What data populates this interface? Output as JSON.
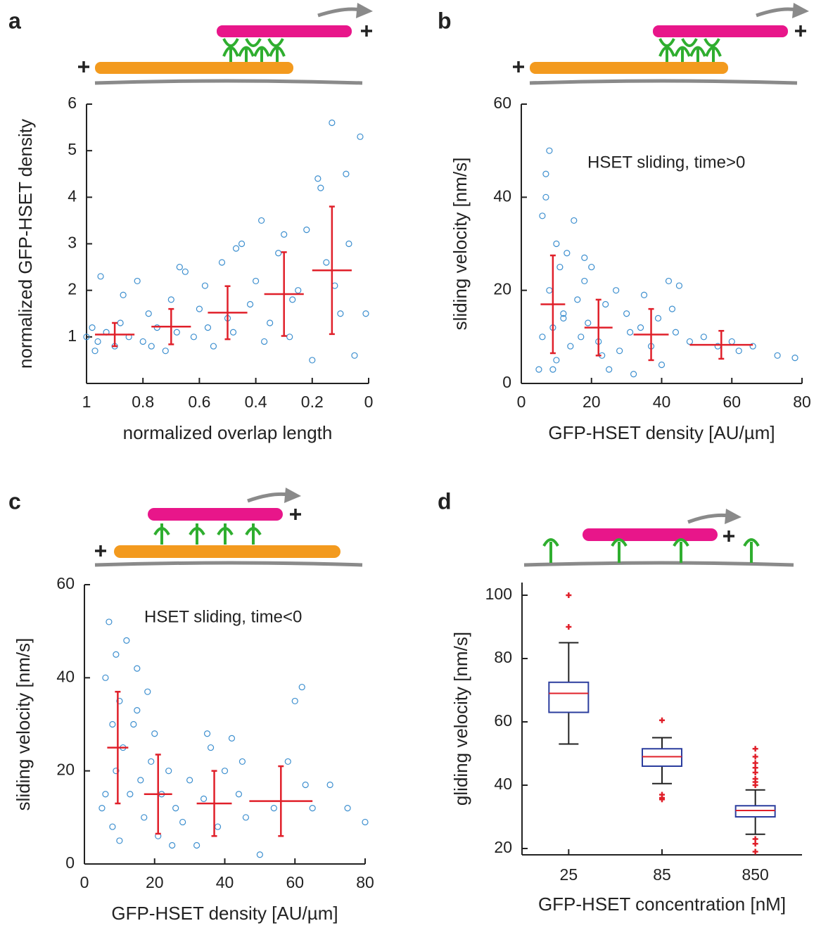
{
  "chart_data": [
    {
      "type": "scatter",
      "panel_label": "a",
      "xlabel": "normalized overlap length",
      "ylabel": "normalized GFP-HSET density",
      "xlim": [
        1,
        0
      ],
      "ylim": [
        0,
        6
      ],
      "xticks": [
        1,
        0.8,
        0.6,
        0.4,
        0.2,
        0
      ],
      "yticks": [
        1,
        2,
        3,
        4,
        5,
        6
      ],
      "points": {
        "color": "#3d8fcf",
        "x": [
          1,
          0.98,
          0.96,
          0.95,
          0.93,
          0.9,
          0.88,
          0.85,
          0.82,
          0.8,
          0.78,
          0.75,
          0.72,
          0.7,
          0.68,
          0.65,
          0.62,
          0.6,
          0.58,
          0.55,
          0.52,
          0.5,
          0.48,
          0.45,
          0.42,
          0.4,
          0.38,
          0.35,
          0.32,
          0.3,
          0.28,
          0.25,
          0.22,
          0.2,
          0.18,
          0.15,
          0.13,
          0.1,
          0.08,
          0.05,
          0.03,
          0.01,
          0.97,
          0.87,
          0.77,
          0.67,
          0.57,
          0.47,
          0.37,
          0.27,
          0.17,
          0.12,
          0.07
        ],
        "y": [
          1.0,
          1.2,
          0.9,
          2.3,
          1.1,
          0.8,
          1.3,
          1.0,
          2.2,
          0.9,
          1.5,
          1.2,
          0.7,
          1.8,
          1.1,
          2.4,
          1.0,
          1.6,
          2.1,
          0.8,
          2.6,
          1.4,
          1.1,
          3.0,
          1.7,
          2.2,
          3.5,
          1.3,
          2.8,
          3.2,
          1.0,
          2.0,
          3.3,
          0.5,
          4.4,
          2.6,
          5.6,
          1.5,
          4.5,
          0.6,
          5.3,
          1.5,
          0.7,
          1.9,
          0.8,
          2.5,
          1.2,
          2.9,
          0.9,
          1.8,
          4.2,
          2.1,
          3.0
        ]
      },
      "summary": {
        "color": "#e0202a",
        "x": [
          0.9,
          0.7,
          0.5,
          0.3,
          0.13
        ],
        "y": [
          1.05,
          1.22,
          1.52,
          1.92,
          2.43
        ],
        "xerr": [
          0.07,
          0.07,
          0.07,
          0.07,
          0.07
        ],
        "yerr": [
          0.25,
          0.38,
          0.57,
          0.9,
          1.37
        ]
      }
    },
    {
      "type": "scatter",
      "panel_label": "b",
      "xlabel": "GFP-HSET density [AU/µm]",
      "ylabel": "sliding velocity [nm/s]",
      "annotation": "HSET sliding, time>0",
      "xlim": [
        0,
        80
      ],
      "ylim": [
        0,
        60
      ],
      "xticks": [
        0,
        20,
        40,
        60,
        80
      ],
      "yticks": [
        0,
        20,
        40,
        60
      ],
      "points": {
        "color": "#3d8fcf",
        "x": [
          5,
          6,
          7,
          8,
          8,
          9,
          10,
          10,
          11,
          12,
          13,
          14,
          15,
          16,
          17,
          18,
          19,
          20,
          22,
          24,
          25,
          27,
          28,
          30,
          32,
          34,
          35,
          37,
          39,
          40,
          42,
          44,
          45,
          48,
          52,
          56,
          60,
          62,
          66,
          73,
          78,
          6,
          7,
          9,
          12,
          18,
          23,
          31,
          43
        ],
        "y": [
          3,
          36,
          45,
          50,
          20,
          12,
          30,
          5,
          25,
          15,
          28,
          8,
          35,
          18,
          10,
          22,
          13,
          25,
          9,
          17,
          3,
          20,
          7,
          15,
          2,
          12,
          19,
          8,
          14,
          4,
          22,
          11,
          21,
          9,
          10,
          8,
          9,
          7,
          8,
          6,
          5.5,
          10,
          40,
          3,
          14,
          27,
          6,
          11,
          16
        ]
      },
      "summary": {
        "color": "#e0202a",
        "x": [
          9,
          22,
          37,
          57
        ],
        "y": [
          17,
          12,
          10.5,
          8.3
        ],
        "xerr": [
          3.5,
          4,
          5,
          9
        ],
        "yerr": [
          10.5,
          6,
          5.5,
          3
        ]
      }
    },
    {
      "type": "scatter",
      "panel_label": "c",
      "xlabel": "GFP-HSET density [AU/µm]",
      "ylabel": "sliding velocity [nm/s]",
      "annotation": "HSET sliding, time<0",
      "xlim": [
        0,
        80
      ],
      "ylim": [
        0,
        60
      ],
      "xticks": [
        0,
        20,
        40,
        60,
        80
      ],
      "yticks": [
        0,
        20,
        40,
        60
      ],
      "points": {
        "color": "#3d8fcf",
        "x": [
          5,
          6,
          7,
          8,
          8,
          9,
          9,
          10,
          11,
          12,
          13,
          14,
          15,
          16,
          17,
          18,
          19,
          20,
          21,
          22,
          24,
          26,
          28,
          30,
          32,
          34,
          36,
          38,
          40,
          42,
          44,
          46,
          50,
          54,
          58,
          60,
          62,
          63,
          65,
          70,
          75,
          80,
          6,
          10,
          15,
          25,
          35,
          45
        ],
        "y": [
          12,
          40,
          52,
          30,
          8,
          45,
          20,
          35,
          25,
          48,
          15,
          30,
          42,
          18,
          10,
          37,
          22,
          28,
          6,
          15,
          20,
          12,
          9,
          18,
          4,
          14,
          25,
          8,
          20,
          27,
          15,
          10,
          2,
          12,
          22,
          35,
          38,
          17,
          12,
          17,
          12,
          9,
          15,
          5,
          33,
          4,
          28,
          22
        ]
      },
      "summary": {
        "color": "#e0202a",
        "x": [
          9.5,
          21,
          37,
          56
        ],
        "y": [
          25,
          15,
          13,
          13.5
        ],
        "xerr": [
          3,
          4,
          5,
          9
        ],
        "yerr": [
          12,
          8.5,
          7,
          7.5
        ]
      }
    },
    {
      "type": "box",
      "panel_label": "d",
      "xlabel": "GFP-HSET concentration [nM]",
      "ylabel": "gliding velocity [nm/s]",
      "categories": [
        "25",
        "85",
        "850"
      ],
      "ylim": [
        18,
        104
      ],
      "yticks": [
        20,
        40,
        60,
        80,
        100
      ],
      "box_color": "#2b3d9e",
      "median_color": "#e0202a",
      "whisker_color": "#222222",
      "outlier_color": "#e0202a",
      "q1": [
        63,
        46,
        30
      ],
      "median": [
        69,
        49,
        32
      ],
      "q3": [
        72.5,
        51.5,
        33.5
      ],
      "whisker_low": [
        53,
        40.5,
        24.5
      ],
      "whisker_high": [
        85,
        55,
        38.5
      ],
      "outliers": [
        [
          90,
          100
        ],
        [
          60.5,
          37,
          36,
          35.5
        ],
        [
          51.5,
          49,
          47,
          45.5,
          44,
          42,
          41,
          40,
          23,
          21.5,
          19
        ]
      ]
    }
  ]
}
